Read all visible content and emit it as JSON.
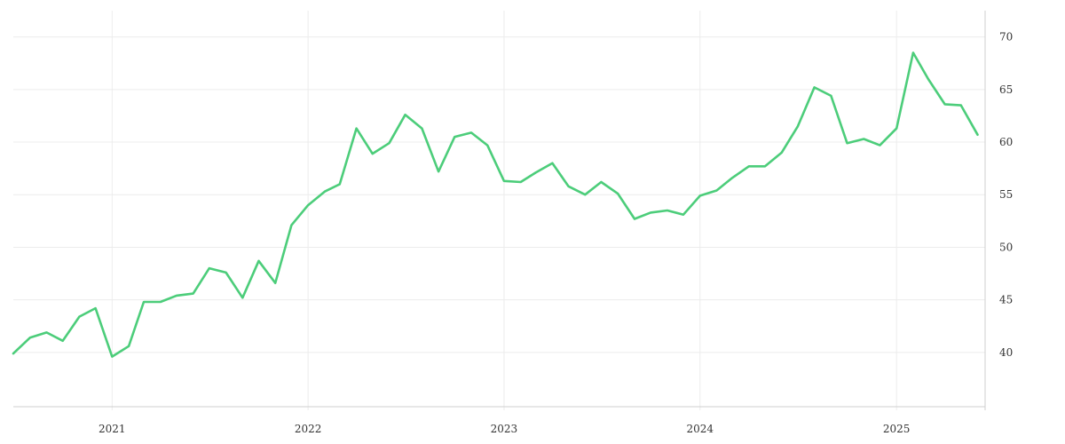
{
  "chart_data": {
    "type": "line",
    "title": "",
    "xlabel": "",
    "ylabel": "",
    "x_axis": {
      "type": "date",
      "range": [
        "2020-07-01",
        "2025-06-15"
      ],
      "tick_labels": [
        "2021",
        "2022",
        "2023",
        "2024",
        "2025"
      ],
      "tick_dates": [
        "2021-01-01",
        "2022-01-01",
        "2023-01-01",
        "2024-01-01",
        "2025-01-01"
      ]
    },
    "y_axis": {
      "range": [
        34.5,
        72.5
      ],
      "ticks": [
        40,
        45,
        50,
        55,
        60,
        65,
        70
      ],
      "position": "right"
    },
    "grid": true,
    "legend": "none",
    "series": [
      {
        "color": "#4ccd7a",
        "points": [
          [
            "2020-07-01",
            39.9
          ],
          [
            "2020-08-01",
            41.4
          ],
          [
            "2020-09-01",
            41.9
          ],
          [
            "2020-10-01",
            41.1
          ],
          [
            "2020-11-01",
            43.4
          ],
          [
            "2020-12-01",
            44.2
          ],
          [
            "2021-01-01",
            39.6
          ],
          [
            "2021-02-01",
            40.6
          ],
          [
            "2021-03-01",
            44.8
          ],
          [
            "2021-04-01",
            44.8
          ],
          [
            "2021-05-01",
            45.4
          ],
          [
            "2021-06-01",
            45.6
          ],
          [
            "2021-07-01",
            48.0
          ],
          [
            "2021-08-01",
            47.6
          ],
          [
            "2021-09-01",
            45.2
          ],
          [
            "2021-10-01",
            48.7
          ],
          [
            "2021-11-01",
            46.6
          ],
          [
            "2021-12-01",
            52.1
          ],
          [
            "2022-01-01",
            54.0
          ],
          [
            "2022-02-01",
            55.3
          ],
          [
            "2022-03-01",
            56.0
          ],
          [
            "2022-04-01",
            61.3
          ],
          [
            "2022-05-01",
            58.9
          ],
          [
            "2022-06-01",
            59.9
          ],
          [
            "2022-07-01",
            62.6
          ],
          [
            "2022-08-01",
            61.3
          ],
          [
            "2022-09-01",
            57.2
          ],
          [
            "2022-10-01",
            60.5
          ],
          [
            "2022-11-01",
            60.9
          ],
          [
            "2022-12-01",
            59.7
          ],
          [
            "2023-01-01",
            56.3
          ],
          [
            "2023-02-01",
            56.2
          ],
          [
            "2023-03-01",
            57.1
          ],
          [
            "2023-04-01",
            58.0
          ],
          [
            "2023-05-01",
            55.8
          ],
          [
            "2023-06-01",
            55.0
          ],
          [
            "2023-07-01",
            56.2
          ],
          [
            "2023-08-01",
            55.1
          ],
          [
            "2023-09-01",
            52.7
          ],
          [
            "2023-10-01",
            53.3
          ],
          [
            "2023-11-01",
            53.5
          ],
          [
            "2023-12-01",
            53.1
          ],
          [
            "2024-01-01",
            54.9
          ],
          [
            "2024-02-01",
            55.4
          ],
          [
            "2024-03-01",
            56.6
          ],
          [
            "2024-04-01",
            57.7
          ],
          [
            "2024-05-01",
            57.7
          ],
          [
            "2024-06-01",
            59.0
          ],
          [
            "2024-07-01",
            61.5
          ],
          [
            "2024-08-01",
            65.2
          ],
          [
            "2024-09-01",
            64.4
          ],
          [
            "2024-10-01",
            59.9
          ],
          [
            "2024-11-01",
            60.3
          ],
          [
            "2024-12-01",
            59.7
          ],
          [
            "2025-01-01",
            61.3
          ],
          [
            "2025-02-01",
            68.5
          ],
          [
            "2025-03-01",
            66.0
          ],
          [
            "2025-04-01",
            63.6
          ],
          [
            "2025-05-01",
            63.5
          ],
          [
            "2025-06-01",
            60.7
          ]
        ]
      }
    ]
  }
}
